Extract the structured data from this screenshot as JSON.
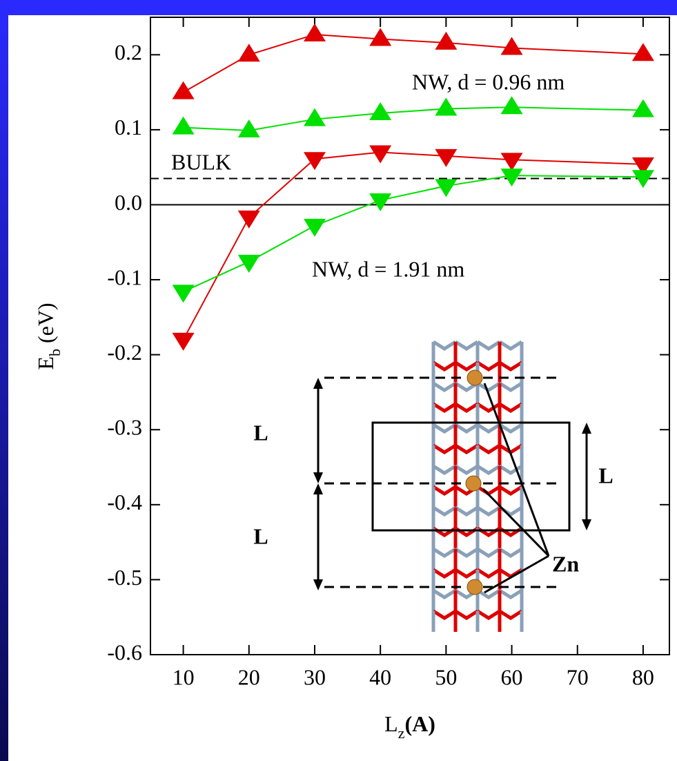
{
  "chart_data": {
    "type": "line",
    "y_label": {
      "main": "E",
      "sub": "b",
      "unit": "(eV)"
    },
    "x_label": {
      "main": "L",
      "sub": "z",
      "unit": "(A)"
    },
    "x": [
      10,
      20,
      30,
      40,
      50,
      60,
      80
    ],
    "xlim": [
      5,
      84
    ],
    "xticks": [
      10,
      20,
      30,
      40,
      50,
      60,
      70,
      80
    ],
    "ylim": [
      -0.6,
      0.25
    ],
    "yticks": [
      -0.6,
      -0.5,
      -0.4,
      -0.3,
      -0.2,
      -0.1,
      {
        "value": 0,
        "label": "0.0"
      },
      0.1,
      0.2
    ],
    "series": [
      {
        "name": "NW, d = 0.96 nm",
        "color": "#e00000",
        "marker": "up",
        "values": [
          0.15,
          0.2,
          0.227,
          0.221,
          0.216,
          0.209,
          0.201
        ]
      },
      {
        "color": "#00e000",
        "marker": "up",
        "values": [
          0.103,
          0.099,
          0.114,
          0.122,
          0.128,
          0.13,
          0.126
        ]
      },
      {
        "color": "#e00000",
        "marker": "down",
        "values": [
          -0.18,
          -0.017,
          0.061,
          0.07,
          0.065,
          0.06,
          0.054
        ]
      },
      {
        "name": "NW, d = 1.91 nm",
        "color": "#00e000",
        "marker": "down",
        "values": [
          -0.116,
          -0.076,
          -0.028,
          0.006,
          0.025,
          0.039,
          0.037
        ]
      }
    ],
    "reference_line": {
      "label": "BULK",
      "value": 0.035
    },
    "inset": {
      "left_label_top": "L",
      "left_label_bottom": "L",
      "right_label": "L",
      "atom_label": "Zn"
    }
  }
}
